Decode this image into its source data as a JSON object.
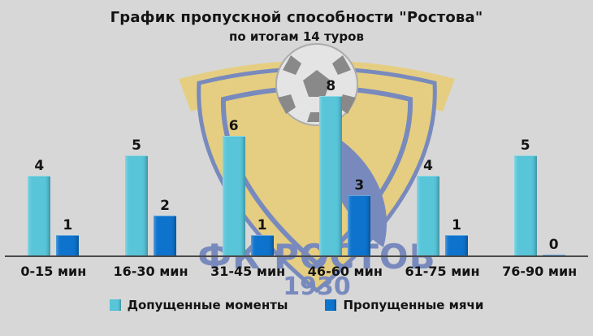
{
  "chart_data": {
    "type": "bar",
    "title": "График пропускной способности \"Ростова\"",
    "subtitle": "по итогам 14 туров",
    "categories": [
      "0-15 мин",
      "16-30 мин",
      "31-45 мин",
      "46-60 мин",
      "61-75 мин",
      "76-90 мин"
    ],
    "series": [
      {
        "name": "Допущенные моменты",
        "color": "#58c5d9",
        "values": [
          4,
          5,
          6,
          8,
          4,
          5
        ]
      },
      {
        "name": "Пропущенные мячи",
        "color": "#0d73cd",
        "values": [
          1,
          2,
          1,
          3,
          1,
          0
        ]
      }
    ],
    "ylim": [
      0,
      8
    ],
    "grid": false,
    "legend_position": "bottom",
    "baseline_color": "#4a4a4a",
    "background_color": "#d7d7d7"
  },
  "watermark": {
    "club": "ФК РОСТОВ",
    "year": "1930"
  }
}
